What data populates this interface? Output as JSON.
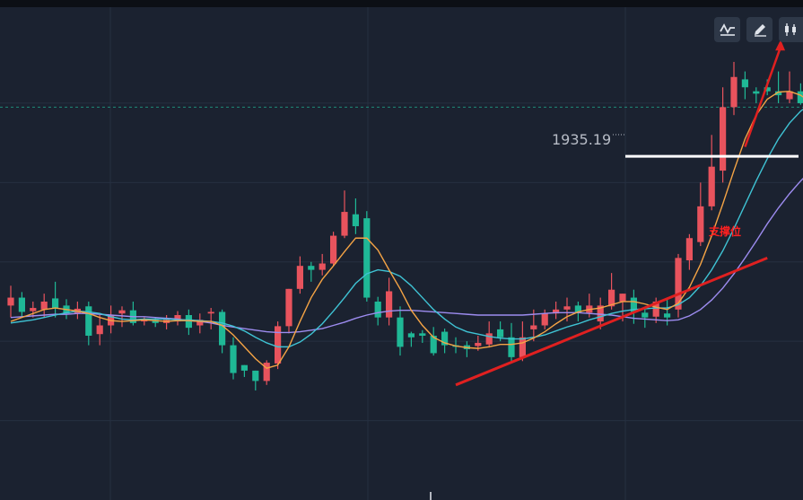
{
  "toolbar": {
    "buttons": [
      {
        "name": "indicator-line-icon"
      },
      {
        "name": "pencil-draw-icon"
      },
      {
        "name": "candlestick-icon"
      }
    ]
  },
  "colors": {
    "background": "#1b2230",
    "grid": "#263041",
    "up": "#e8535d",
    "down": "#1fb896",
    "ma_fast": "#f5a445",
    "ma_mid": "#3fc3d4",
    "ma_slow": "#9d8cf0",
    "annotation": "#ff2020",
    "support": "#ffffff"
  },
  "chart_data": {
    "type": "candlestick",
    "max_label": "1935.19",
    "annotation_label": "支撑位",
    "candles": [
      [
        1904.5,
        1905.5,
        1907.0,
        1903.0
      ],
      [
        1905.5,
        1903.7,
        1906.2,
        1903.0
      ],
      [
        1903.8,
        1904.2,
        1905.0,
        1903.0
      ],
      [
        1904.0,
        1905.0,
        1906.0,
        1903.0
      ],
      [
        1905.4,
        1904.2,
        1907.5,
        1903.0
      ],
      [
        1904.5,
        1903.5,
        1905.3,
        1902.8
      ],
      [
        1903.5,
        1904.1,
        1905.0,
        1902.8
      ],
      [
        1904.4,
        1900.7,
        1905.0,
        1899.5
      ],
      [
        1900.9,
        1902.0,
        1903.3,
        1899.5
      ],
      [
        1902.0,
        1903.3,
        1904.5,
        1901.0
      ],
      [
        1903.5,
        1903.9,
        1904.4,
        1901.8
      ],
      [
        1903.9,
        1902.3,
        1905.0,
        1902.0
      ],
      [
        1902.5,
        1902.7,
        1903.0,
        1902.0
      ],
      [
        1902.7,
        1902.3,
        1903.0,
        1901.8
      ],
      [
        1902.3,
        1902.7,
        1903.3,
        1901.5
      ],
      [
        1902.5,
        1903.3,
        1903.8,
        1902.0
      ],
      [
        1903.3,
        1901.7,
        1904.0,
        1900.8
      ],
      [
        1902.0,
        1902.7,
        1903.5,
        1901.0
      ],
      [
        1903.5,
        1903.7,
        1904.2,
        1901.5
      ],
      [
        1903.7,
        1899.5,
        1904.0,
        1898.5
      ],
      [
        1899.5,
        1896.0,
        1900.5,
        1895.2
      ],
      [
        1897.0,
        1896.3,
        1897.0,
        1895.5
      ],
      [
        1896.3,
        1895.0,
        1896.3,
        1893.8
      ],
      [
        1895.0,
        1897.3,
        1897.6,
        1894.5
      ],
      [
        1897.2,
        1901.9,
        1902.5,
        1896.5
      ],
      [
        1901.9,
        1906.6,
        1906.6,
        1901.0
      ],
      [
        1906.6,
        1909.5,
        1910.7,
        1906.0
      ],
      [
        1909.5,
        1909.0,
        1910.0,
        1907.5
      ],
      [
        1909.0,
        1909.8,
        1911.0,
        1908.3
      ],
      [
        1909.8,
        1913.3,
        1913.8,
        1909.5
      ],
      [
        1913.3,
        1916.3,
        1919.0,
        1913.0
      ],
      [
        1916.0,
        1914.5,
        1918.0,
        1913.5
      ],
      [
        1915.5,
        1905.5,
        1916.4,
        1905.0
      ],
      [
        1905.0,
        1903.0,
        1905.6,
        1902.0
      ],
      [
        1903.0,
        1906.3,
        1908.0,
        1902.0
      ],
      [
        1903.0,
        1899.3,
        1904.4,
        1898.2
      ],
      [
        1901.0,
        1900.5,
        1901.2,
        1899.3
      ],
      [
        1901.0,
        1900.7,
        1901.4,
        1899.8
      ],
      [
        1900.7,
        1898.5,
        1901.8,
        1898.2
      ],
      [
        1901.2,
        1899.5,
        1901.6,
        1898.5
      ],
      [
        1899.5,
        1899.3,
        1900.5,
        1898.5
      ],
      [
        1899.5,
        1899.0,
        1900.0,
        1898.0
      ],
      [
        1899.4,
        1899.8,
        1900.7,
        1898.8
      ],
      [
        1899.6,
        1901.0,
        1902.5,
        1899.2
      ],
      [
        1901.5,
        1900.5,
        1902.5,
        1900.0
      ],
      [
        1900.5,
        1898.0,
        1902.3,
        1897.2
      ],
      [
        1898.0,
        1900.5,
        1902.5,
        1897.5
      ],
      [
        1901.5,
        1902.0,
        1904.0,
        1900.0
      ],
      [
        1902.0,
        1903.5,
        1904.0,
        1901.5
      ],
      [
        1903.5,
        1904.0,
        1905.0,
        1902.8
      ],
      [
        1904.0,
        1904.4,
        1905.5,
        1902.5
      ],
      [
        1904.5,
        1903.6,
        1905.0,
        1902.5
      ],
      [
        1903.6,
        1904.5,
        1906.0,
        1903.0
      ],
      [
        1902.5,
        1904.5,
        1905.5,
        1901.5
      ],
      [
        1904.4,
        1906.5,
        1908.6,
        1904.0
      ],
      [
        1905.0,
        1906.0,
        1906.0,
        1902.5
      ],
      [
        1905.5,
        1903.7,
        1906.5,
        1902.2
      ],
      [
        1903.6,
        1903.0,
        1904.1,
        1901.7
      ],
      [
        1903.1,
        1905.0,
        1905.5,
        1902.3
      ],
      [
        1903.5,
        1903.0,
        1905.5,
        1902.0
      ],
      [
        1904.0,
        1910.5,
        1911.0,
        1903.0
      ],
      [
        1910.2,
        1913.0,
        1913.5,
        1909.0
      ],
      [
        1912.5,
        1917.0,
        1920.0,
        1912.0
      ],
      [
        1917.0,
        1922.0,
        1926.0,
        1916.5
      ],
      [
        1921.5,
        1929.5,
        1932.0,
        1920.0
      ],
      [
        1929.5,
        1933.3,
        1935.2,
        1928.5
      ],
      [
        1933.0,
        1932.0,
        1934.0,
        1930.5
      ],
      [
        1931.5,
        1931.2,
        1932.0,
        1930.0
      ],
      [
        1932.0,
        1931.5,
        1933.0,
        1931.0
      ],
      [
        1931.5,
        1931.0,
        1934.0,
        1930.0
      ],
      [
        1930.5,
        1931.5,
        1934.0,
        1930.0
      ],
      [
        1931.5,
        1930.0,
        1932.5,
        1929.8
      ],
      [
        1930.0,
        1928.5,
        1931.0,
        1928.0
      ]
    ],
    "ma": {
      "fast": [
        1902.5,
        1903.0,
        1903.5,
        1904.0,
        1904.2,
        1904.0,
        1903.8,
        1903.5,
        1903.0,
        1902.6,
        1902.5,
        1902.6,
        1902.7,
        1902.6,
        1902.5,
        1902.6,
        1902.6,
        1902.5,
        1902.5,
        1902.0,
        1900.8,
        1899.3,
        1897.8,
        1896.6,
        1897.0,
        1899.3,
        1902.5,
        1905.5,
        1907.8,
        1909.5,
        1911.3,
        1913.0,
        1913.0,
        1911.5,
        1909.0,
        1906.6,
        1903.9,
        1902.0,
        1900.5,
        1899.8,
        1899.4,
        1899.2,
        1899.1,
        1899.3,
        1899.6,
        1899.6,
        1899.8,
        1900.4,
        1901.2,
        1902.2,
        1903.1,
        1903.7,
        1904.0,
        1904.2,
        1904.6,
        1905.0,
        1905.0,
        1904.7,
        1904.3,
        1904.0,
        1904.8,
        1906.8,
        1909.7,
        1913.3,
        1917.3,
        1921.5,
        1925.5,
        1928.5,
        1930.5,
        1931.4,
        1931.5,
        1931.0,
        1930.0
      ],
      "mid": [
        1902.3,
        1902.5,
        1902.7,
        1903.0,
        1903.3,
        1903.6,
        1903.8,
        1903.7,
        1903.5,
        1903.1,
        1902.8,
        1902.7,
        1902.8,
        1902.8,
        1902.8,
        1902.7,
        1902.7,
        1902.6,
        1902.5,
        1902.3,
        1901.9,
        1901.3,
        1900.5,
        1899.8,
        1899.3,
        1899.3,
        1899.9,
        1900.9,
        1902.2,
        1903.8,
        1905.5,
        1907.3,
        1908.5,
        1909.0,
        1908.8,
        1908.2,
        1907.0,
        1905.5,
        1904.0,
        1902.8,
        1901.8,
        1901.2,
        1900.9,
        1900.6,
        1900.4,
        1900.3,
        1900.3,
        1900.5,
        1900.8,
        1901.3,
        1901.8,
        1902.2,
        1902.7,
        1903.1,
        1903.5,
        1903.8,
        1904.0,
        1904.1,
        1904.2,
        1904.2,
        1904.6,
        1905.5,
        1907.0,
        1909.0,
        1911.4,
        1914.2,
        1917.2,
        1920.2,
        1923.0,
        1925.5,
        1927.5,
        1929.0,
        1930.0
      ],
      "slow": [
        1903.0,
        1903.1,
        1903.2,
        1903.3,
        1903.4,
        1903.4,
        1903.5,
        1903.5,
        1903.4,
        1903.3,
        1903.2,
        1903.1,
        1903.1,
        1903.0,
        1902.9,
        1902.8,
        1902.6,
        1902.5,
        1902.3,
        1902.0,
        1901.8,
        1901.6,
        1901.4,
        1901.2,
        1901.1,
        1901.1,
        1901.2,
        1901.4,
        1901.6,
        1902.0,
        1902.4,
        1902.9,
        1903.3,
        1903.6,
        1903.8,
        1903.9,
        1903.9,
        1903.8,
        1903.7,
        1903.6,
        1903.5,
        1903.4,
        1903.3,
        1903.3,
        1903.3,
        1903.3,
        1903.3,
        1903.4,
        1903.5,
        1903.6,
        1903.6,
        1903.6,
        1903.5,
        1903.4,
        1903.3,
        1903.1,
        1902.9,
        1902.8,
        1902.7,
        1902.6,
        1902.7,
        1903.2,
        1904.0,
        1905.2,
        1906.7,
        1908.5,
        1910.5,
        1912.6,
        1914.8,
        1916.8,
        1918.6,
        1920.2,
        1921.6
      ]
    },
    "support_level": 1923.3,
    "trendline": [
      [
        40,
        1894.5
      ],
      [
        68,
        1910.5
      ]
    ],
    "forecast_arrow": [
      [
        66,
        1924.5
      ],
      [
        69.2,
        1938.0
      ]
    ],
    "current_price_line": 1929.5,
    "ylim": [
      1880.0,
      1943.0
    ],
    "grid": true
  }
}
